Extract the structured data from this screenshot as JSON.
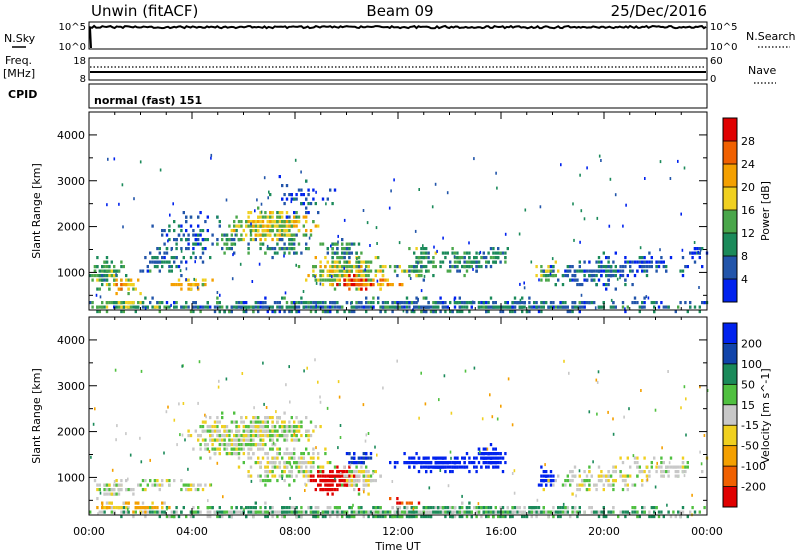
{
  "header": {
    "station": "Unwin (fitACF)",
    "beam": "Beam 09",
    "date": "25/Dec/2016"
  },
  "strip_labels": {
    "nsky": "N.Sky",
    "nsky_top": "10^5",
    "nsky_bottom": "10^0",
    "nsearch": "N.Search",
    "nsearch_top": "10^5",
    "nsearch_bottom": "10^0",
    "freq": "Freq.",
    "freq_unit": "[MHz]",
    "freq_top": "18",
    "freq_bottom": "8",
    "nave": "Nave",
    "nave_top": "60",
    "nave_bottom": "0",
    "cpid": "CPID",
    "mode": "normal (fast) 151"
  },
  "colors": {
    "power": [
      "#0022ee",
      "#2255aa",
      "#1b8a5a",
      "#4aa64a",
      "#f0d020",
      "#f4a000",
      "#f06000",
      "#e00000"
    ],
    "velocity": [
      "#0022ee",
      "#1144aa",
      "#1b8a5a",
      "#50c040",
      "#c8c8c8",
      "#f0d020",
      "#f4a000",
      "#f06000",
      "#e00000"
    ],
    "ground": "#808080"
  },
  "chart_data": [
    {
      "type": "heatmap",
      "name": "power",
      "xlabel": "",
      "ylabel": "Slant Range [km]",
      "xlim": [
        0,
        24
      ],
      "ylim": [
        180,
        4500
      ],
      "xticks": [
        "00:00",
        "04:00",
        "08:00",
        "12:00",
        "16:00",
        "20:00",
        "00:00"
      ],
      "yticks": [
        1000,
        2000,
        3000,
        4000
      ],
      "colorbar": {
        "label": "Power [dB]",
        "ticks": [
          4,
          8,
          12,
          16,
          20,
          24,
          28
        ],
        "range": [
          0,
          32
        ]
      },
      "blobs": [
        [
          0.6,
          1000,
          0.6,
          300,
          12,
          0.6
        ],
        [
          1.5,
          750,
          0.5,
          120,
          20,
          0.6
        ],
        [
          4.0,
          750,
          0.6,
          120,
          20,
          0.6
        ],
        [
          2.8,
          1250,
          0.9,
          250,
          8,
          0.25
        ],
        [
          4.0,
          1800,
          1.2,
          450,
          6,
          0.2
        ],
        [
          5.4,
          1700,
          0.5,
          200,
          10,
          0.4
        ],
        [
          7.0,
          2050,
          1.3,
          280,
          17,
          0.8
        ],
        [
          7.5,
          1600,
          1.0,
          200,
          9,
          0.3
        ],
        [
          8.2,
          2600,
          1.0,
          400,
          5,
          0.15
        ],
        [
          10.0,
          1050,
          1.3,
          270,
          17,
          0.85
        ],
        [
          10.4,
          800,
          0.6,
          120,
          28,
          0.8
        ],
        [
          9.7,
          1500,
          0.7,
          280,
          10,
          0.4
        ],
        [
          11.6,
          800,
          0.5,
          100,
          22,
          0.5
        ],
        [
          12.6,
          1080,
          0.8,
          120,
          12,
          0.6
        ],
        [
          13.0,
          1400,
          0.5,
          150,
          12,
          0.5
        ],
        [
          14.6,
          1250,
          0.9,
          250,
          11,
          0.45
        ],
        [
          15.8,
          1350,
          0.4,
          200,
          10,
          0.45
        ],
        [
          17.8,
          1050,
          0.4,
          150,
          14,
          0.7
        ],
        [
          19.5,
          1000,
          1.6,
          250,
          6,
          0.35
        ],
        [
          21.5,
          1200,
          1.8,
          250,
          5,
          0.2
        ],
        [
          23.5,
          1500,
          0.5,
          150,
          5,
          0.25
        ],
        [
          12.0,
          300,
          12.0,
          130,
          8,
          0.55
        ],
        [
          1.5,
          320,
          1.5,
          100,
          14,
          0.6
        ]
      ]
    },
    {
      "type": "heatmap",
      "name": "velocity",
      "xlabel": "Time UT",
      "ylabel": "Slant Range [km]",
      "xlim": [
        0,
        24
      ],
      "ylim": [
        180,
        4500
      ],
      "xticks": [
        "00:00",
        "04:00",
        "08:00",
        "12:00",
        "16:00",
        "20:00",
        "00:00"
      ],
      "yticks": [
        1000,
        2000,
        3000,
        4000
      ],
      "colorbar": {
        "label": "Velocity [m s^-1]",
        "ticks": [
          200,
          100,
          50,
          15,
          -15,
          -50,
          -100,
          -200
        ]
      },
      "blobs": [
        [
          0.8,
          800,
          0.8,
          150,
          0,
          0.6
        ],
        [
          2.5,
          900,
          0.6,
          100,
          0,
          0.5
        ],
        [
          4.0,
          850,
          0.5,
          100,
          0,
          0.5
        ],
        [
          5.5,
          1900,
          1.3,
          400,
          0,
          0.6
        ],
        [
          7.2,
          2100,
          1.2,
          280,
          0,
          0.8
        ],
        [
          7.7,
          1300,
          1.4,
          350,
          0,
          0.5
        ],
        [
          9.5,
          1000,
          0.8,
          230,
          -180,
          0.9
        ],
        [
          10.5,
          1050,
          0.7,
          250,
          0,
          0.5
        ],
        [
          10.4,
          1450,
          0.5,
          150,
          150,
          0.6
        ],
        [
          12.3,
          500,
          0.6,
          30,
          -150,
          0.6
        ],
        [
          13.5,
          1350,
          1.3,
          160,
          220,
          0.9
        ],
        [
          15.5,
          1450,
          0.5,
          220,
          220,
          0.9
        ],
        [
          17.8,
          1000,
          0.3,
          150,
          180,
          0.9
        ],
        [
          19.5,
          1000,
          1.6,
          250,
          0,
          0.3
        ],
        [
          22.0,
          1200,
          1.5,
          250,
          0,
          0.25
        ],
        [
          12.0,
          280,
          12.0,
          120,
          30,
          0.7
        ],
        [
          1.5,
          400,
          1.5,
          100,
          -30,
          0.5
        ]
      ]
    }
  ]
}
